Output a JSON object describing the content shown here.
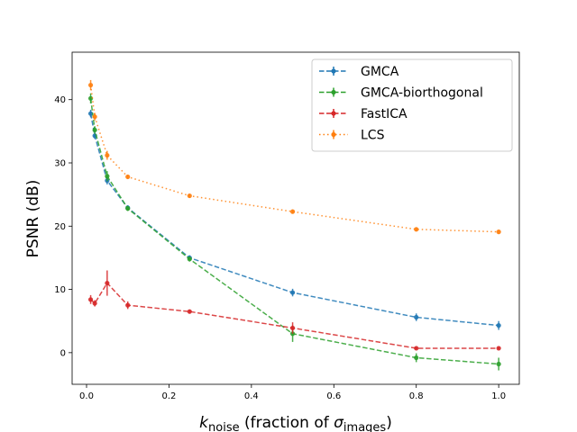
{
  "chart_data": {
    "type": "line",
    "xlabel": {
      "main": "k",
      "sub": "noise",
      "rest": " (fraction of ",
      "sigma": "σ",
      "sigma_sub": "images",
      "close": ")"
    },
    "ylabel": "PSNR (dB)",
    "xlim": [
      -0.035,
      1.05
    ],
    "ylim": [
      -5,
      47.5
    ],
    "x_ticks": [
      0.0,
      0.2,
      0.4,
      0.6,
      0.8,
      1.0
    ],
    "x_tick_labels": [
      "0.0",
      "0.2",
      "0.4",
      "0.6",
      "0.8",
      "1.0"
    ],
    "y_ticks": [
      0,
      10,
      20,
      30,
      40
    ],
    "y_tick_labels": [
      "0",
      "10",
      "20",
      "30",
      "40"
    ],
    "grid": false,
    "legend_position": "top-right",
    "x": [
      0.01,
      0.02,
      0.05,
      0.1,
      0.25,
      0.5,
      0.8,
      1.0
    ],
    "series": [
      {
        "name": "GMCA",
        "color": "#1f77b4",
        "linestyle": "dashed",
        "values": [
          37.8,
          34.3,
          27.2,
          22.9,
          15.0,
          9.5,
          5.6,
          4.3
        ],
        "errors": [
          0.6,
          0.5,
          0.6,
          0.4,
          0.4,
          0.6,
          0.6,
          0.7
        ]
      },
      {
        "name": "GMCA-biorthogonal",
        "color": "#2ca02c",
        "linestyle": "dashed",
        "values": [
          40.2,
          35.2,
          27.9,
          22.8,
          14.8,
          3.0,
          -0.8,
          -1.8
        ],
        "errors": [
          0.8,
          0.6,
          0.8,
          0.4,
          0.4,
          1.3,
          0.7,
          1.0
        ]
      },
      {
        "name": "FastICA",
        "color": "#d62728",
        "linestyle": "dashed",
        "values": [
          8.4,
          7.8,
          11.0,
          7.5,
          6.5,
          3.9,
          0.7,
          0.7
        ],
        "errors": [
          0.7,
          0.5,
          2.0,
          0.6,
          0.3,
          0.9,
          0.2,
          0.2
        ]
      },
      {
        "name": "LCS",
        "color": "#ff7f0e",
        "linestyle": "dotted",
        "values": [
          42.3,
          37.3,
          31.2,
          27.8,
          24.8,
          22.3,
          19.5,
          19.1
        ],
        "errors": [
          0.8,
          0.6,
          0.7,
          0.3,
          0.3,
          0.3,
          0.3,
          0.3
        ]
      }
    ]
  }
}
